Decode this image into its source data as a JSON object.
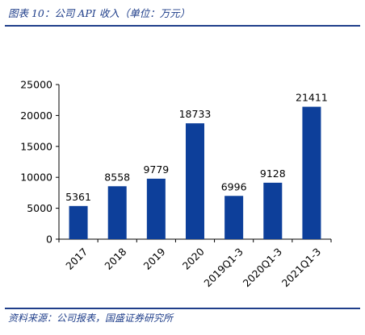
{
  "header": {
    "title": "图表 10：公司 API 收入（单位：万元）"
  },
  "footer": {
    "source": "资料来源：公司报表，国盛证券研究所"
  },
  "chart_data": {
    "type": "bar",
    "categories": [
      "2017",
      "2018",
      "2019",
      "2020",
      "2019Q1-3",
      "2020Q1-3",
      "2021Q1-3"
    ],
    "values": [
      5361,
      8558,
      9779,
      18733,
      6996,
      9128,
      21411
    ],
    "ylim": [
      0,
      25000
    ],
    "yticks": [
      0,
      5000,
      10000,
      15000,
      20000,
      25000
    ],
    "bar_color": "#0d3f9a",
    "grid": false,
    "legend": "none",
    "data_labels": true
  },
  "colors": {
    "accent": "#1f3e8a"
  }
}
